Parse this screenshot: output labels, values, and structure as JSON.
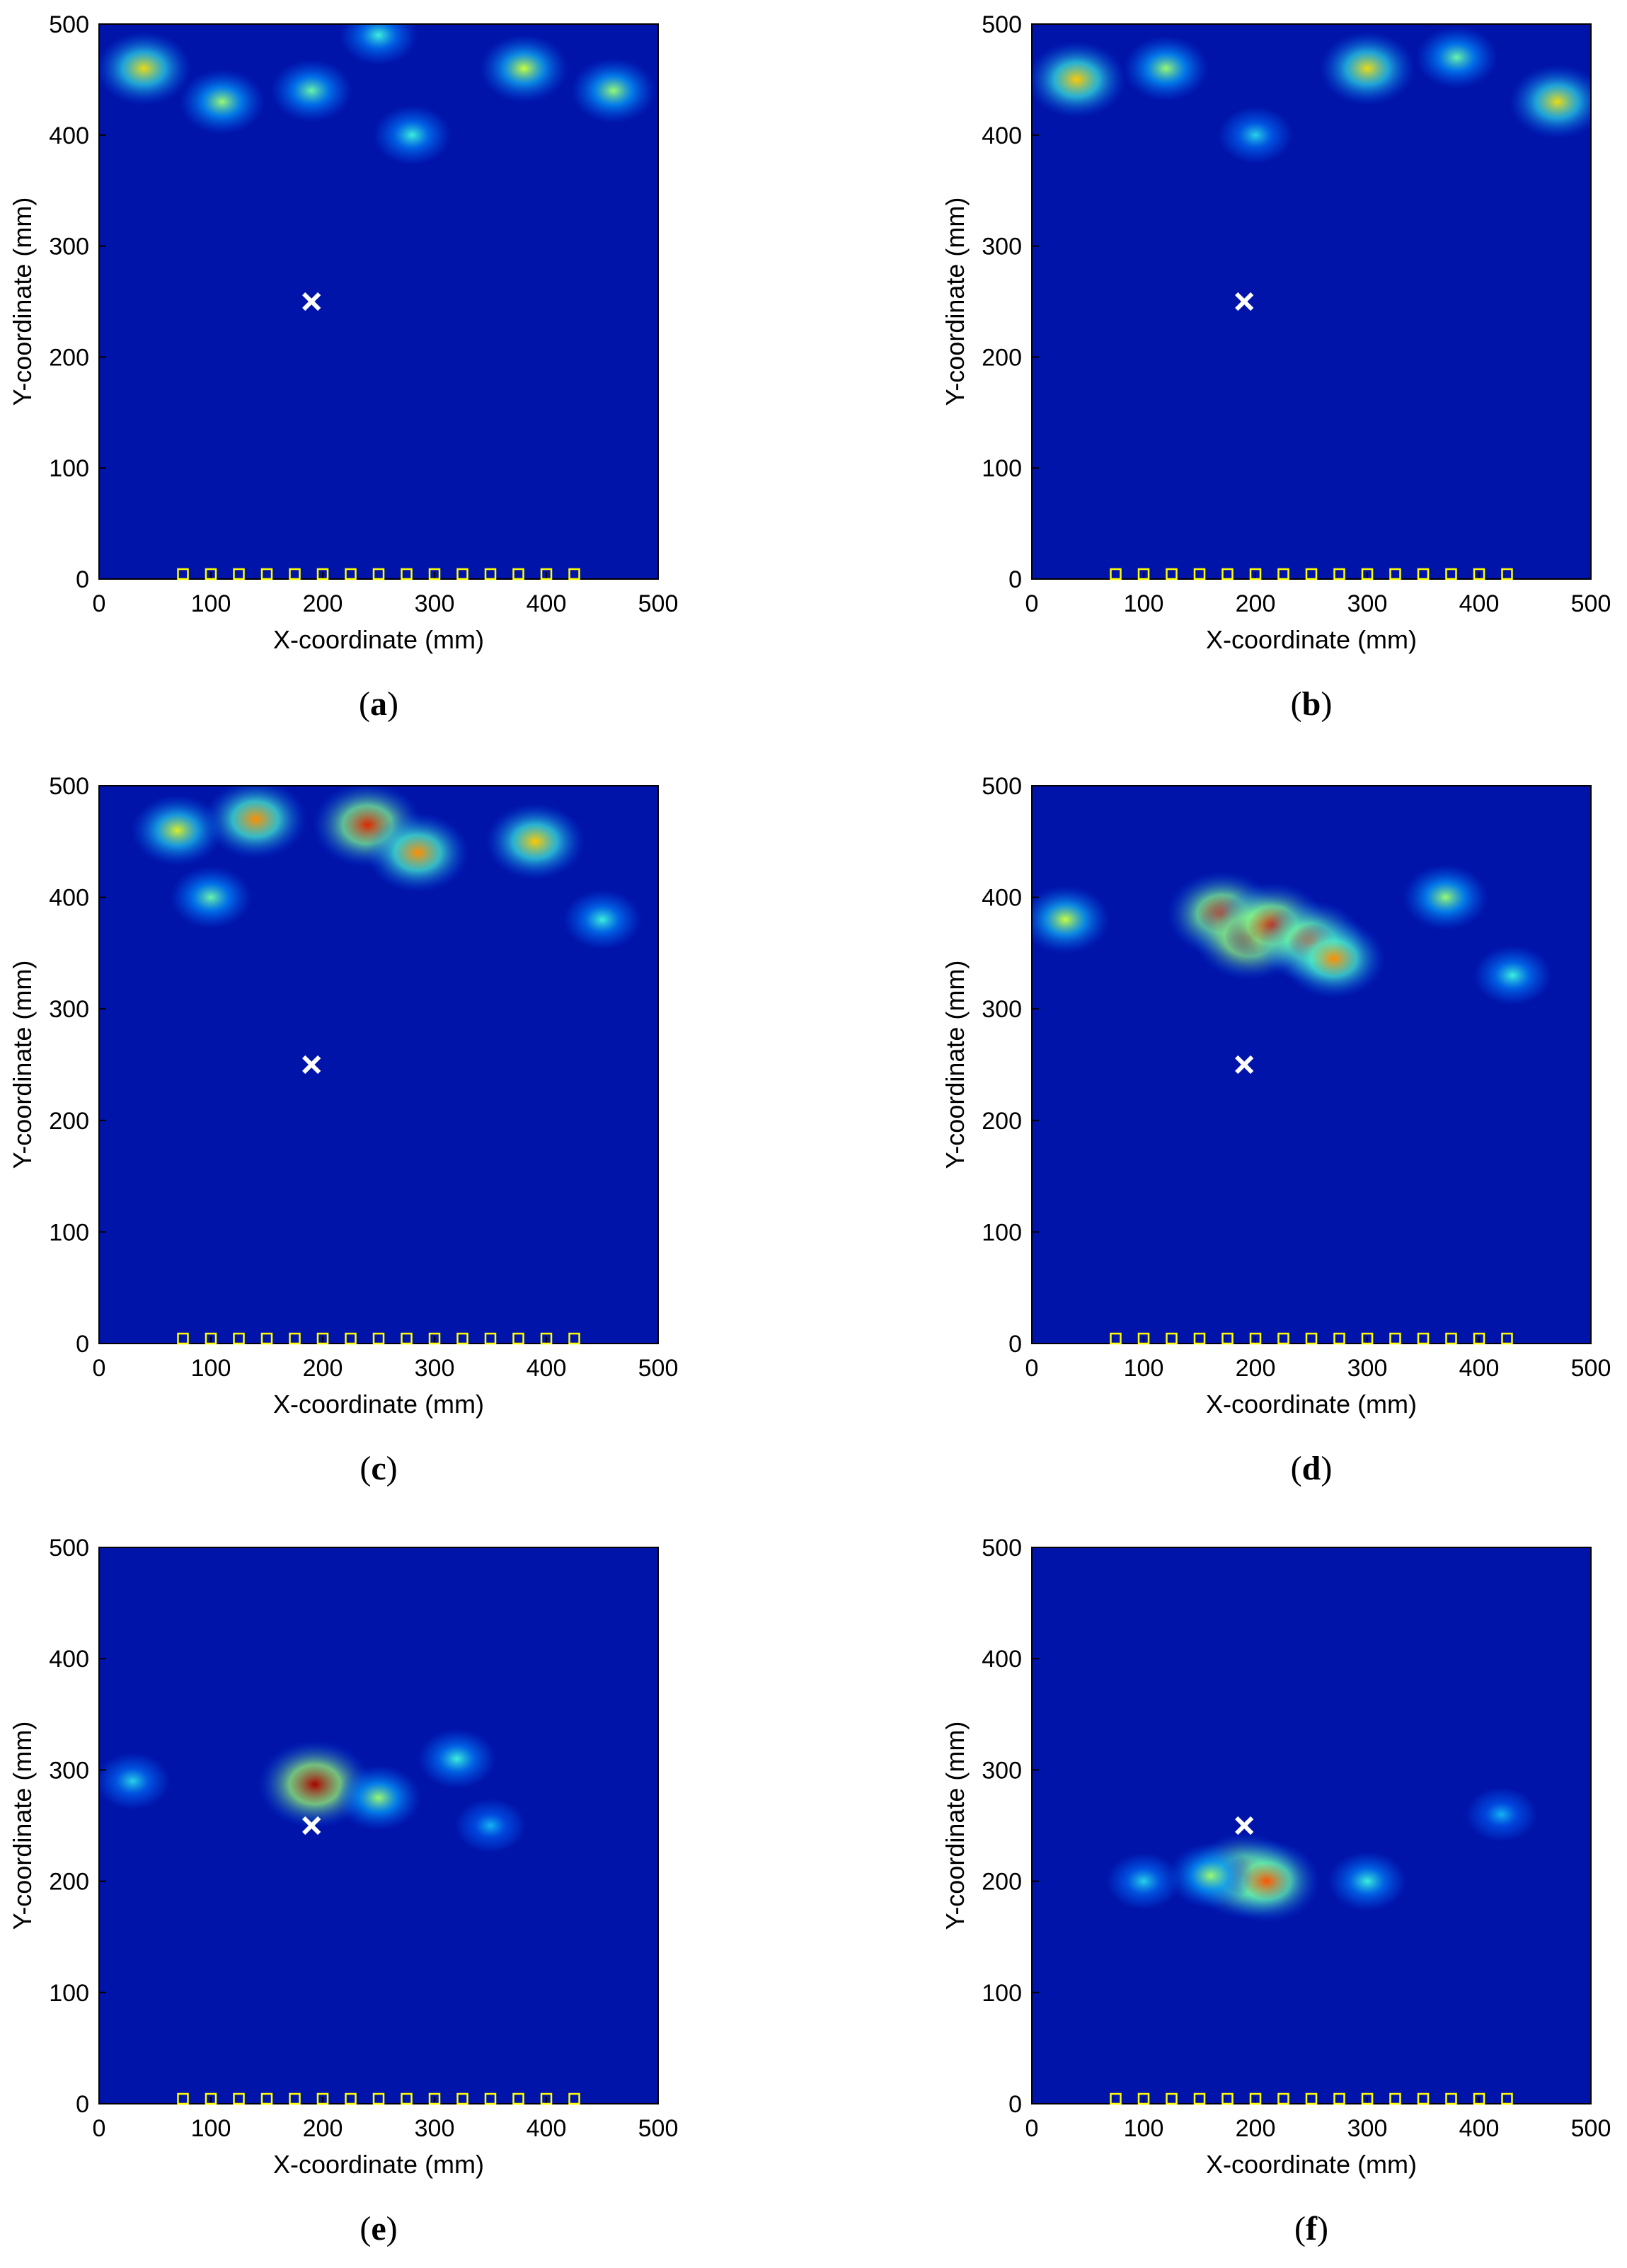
{
  "chart_data": [
    {
      "type": "heatmap",
      "caption": "a",
      "xlabel": "X-coordinate (mm)",
      "ylabel": "Y-coordinate (mm)",
      "xlim": [
        0,
        500
      ],
      "ylim": [
        0,
        500
      ],
      "xticks": [
        0,
        100,
        200,
        300,
        400,
        500
      ],
      "yticks": [
        0,
        100,
        200,
        300,
        400,
        500
      ],
      "colormap": "jet",
      "target_marker": {
        "x": 190,
        "y": 250,
        "symbol": "×"
      },
      "sensors_y": 0,
      "sensors_x": [
        75,
        100,
        125,
        150,
        175,
        200,
        225,
        250,
        275,
        300,
        325,
        350,
        375,
        400,
        425
      ],
      "hotspots": [
        {
          "x": 40,
          "y": 460,
          "intensity": 0.75
        },
        {
          "x": 110,
          "y": 430,
          "intensity": 0.6
        },
        {
          "x": 190,
          "y": 440,
          "intensity": 0.55
        },
        {
          "x": 280,
          "y": 400,
          "intensity": 0.5
        },
        {
          "x": 380,
          "y": 460,
          "intensity": 0.65
        },
        {
          "x": 460,
          "y": 440,
          "intensity": 0.6
        },
        {
          "x": 250,
          "y": 490,
          "intensity": 0.5
        }
      ]
    },
    {
      "type": "heatmap",
      "caption": "b",
      "xlabel": "X-coordinate (mm)",
      "ylabel": "Y-coordinate (mm)",
      "xlim": [
        0,
        500
      ],
      "ylim": [
        0,
        500
      ],
      "xticks": [
        0,
        100,
        200,
        300,
        400,
        500
      ],
      "yticks": [
        0,
        100,
        200,
        300,
        400,
        500
      ],
      "colormap": "jet",
      "target_marker": {
        "x": 190,
        "y": 250,
        "symbol": "×"
      },
      "sensors_y": 0,
      "sensors_x": [
        75,
        100,
        125,
        150,
        175,
        200,
        225,
        250,
        275,
        300,
        325,
        350,
        375,
        400,
        425
      ],
      "hotspots": [
        {
          "x": 40,
          "y": 450,
          "intensity": 0.8
        },
        {
          "x": 120,
          "y": 460,
          "intensity": 0.6
        },
        {
          "x": 300,
          "y": 460,
          "intensity": 0.75
        },
        {
          "x": 470,
          "y": 430,
          "intensity": 0.75
        },
        {
          "x": 200,
          "y": 400,
          "intensity": 0.45
        },
        {
          "x": 380,
          "y": 470,
          "intensity": 0.55
        }
      ]
    },
    {
      "type": "heatmap",
      "caption": "c",
      "xlabel": "X-coordinate (mm)",
      "ylabel": "Y-coordinate (mm)",
      "xlim": [
        0,
        500
      ],
      "ylim": [
        0,
        500
      ],
      "xticks": [
        0,
        100,
        200,
        300,
        400,
        500
      ],
      "yticks": [
        0,
        100,
        200,
        300,
        400,
        500
      ],
      "colormap": "jet",
      "target_marker": {
        "x": 190,
        "y": 250,
        "symbol": "×"
      },
      "sensors_y": 0,
      "sensors_x": [
        75,
        100,
        125,
        150,
        175,
        200,
        225,
        250,
        275,
        300,
        325,
        350,
        375,
        400,
        425
      ],
      "hotspots": [
        {
          "x": 140,
          "y": 470,
          "intensity": 0.85
        },
        {
          "x": 240,
          "y": 465,
          "intensity": 0.95
        },
        {
          "x": 285,
          "y": 440,
          "intensity": 0.85
        },
        {
          "x": 390,
          "y": 450,
          "intensity": 0.8
        },
        {
          "x": 70,
          "y": 460,
          "intensity": 0.7
        },
        {
          "x": 100,
          "y": 400,
          "intensity": 0.55
        },
        {
          "x": 450,
          "y": 380,
          "intensity": 0.5
        }
      ]
    },
    {
      "type": "heatmap",
      "caption": "d",
      "xlabel": "X-coordinate (mm)",
      "ylabel": "Y-coordinate (mm)",
      "xlim": [
        0,
        500
      ],
      "ylim": [
        0,
        500
      ],
      "xticks": [
        0,
        100,
        200,
        300,
        400,
        500
      ],
      "yticks": [
        0,
        100,
        200,
        300,
        400,
        500
      ],
      "colormap": "jet",
      "target_marker": {
        "x": 190,
        "y": 250,
        "symbol": "×"
      },
      "sensors_y": 0,
      "sensors_x": [
        75,
        100,
        125,
        150,
        175,
        200,
        225,
        250,
        275,
        300,
        325,
        350,
        375,
        400,
        425
      ],
      "hotspots": [
        {
          "x": 170,
          "y": 385,
          "intensity": 0.95
        },
        {
          "x": 195,
          "y": 365,
          "intensity": 1.0
        },
        {
          "x": 215,
          "y": 375,
          "intensity": 0.95
        },
        {
          "x": 250,
          "y": 360,
          "intensity": 0.9
        },
        {
          "x": 270,
          "y": 345,
          "intensity": 0.85
        },
        {
          "x": 30,
          "y": 380,
          "intensity": 0.65
        },
        {
          "x": 370,
          "y": 400,
          "intensity": 0.6
        },
        {
          "x": 430,
          "y": 330,
          "intensity": 0.5
        }
      ]
    },
    {
      "type": "heatmap",
      "caption": "e",
      "xlabel": "X-coordinate (mm)",
      "ylabel": "Y-coordinate (mm)",
      "xlim": [
        0,
        500
      ],
      "ylim": [
        0,
        500
      ],
      "xticks": [
        0,
        100,
        200,
        300,
        400,
        500
      ],
      "yticks": [
        0,
        100,
        200,
        300,
        400,
        500
      ],
      "colormap": "jet",
      "target_marker": {
        "x": 190,
        "y": 250,
        "symbol": "×"
      },
      "sensors_y": 0,
      "sensors_x": [
        75,
        100,
        125,
        150,
        175,
        200,
        225,
        250,
        275,
        300,
        325,
        350,
        375,
        400,
        425
      ],
      "hotspots": [
        {
          "x": 193,
          "y": 287,
          "intensity": 1.0
        },
        {
          "x": 250,
          "y": 275,
          "intensity": 0.6
        },
        {
          "x": 320,
          "y": 310,
          "intensity": 0.5
        },
        {
          "x": 30,
          "y": 290,
          "intensity": 0.45
        },
        {
          "x": 350,
          "y": 250,
          "intensity": 0.4
        }
      ]
    },
    {
      "type": "heatmap",
      "caption": "f",
      "xlabel": "X-coordinate (mm)",
      "ylabel": "Y-coordinate (mm)",
      "xlim": [
        0,
        500
      ],
      "ylim": [
        0,
        500
      ],
      "xticks": [
        0,
        100,
        200,
        300,
        400,
        500
      ],
      "yticks": [
        0,
        100,
        200,
        300,
        400,
        500
      ],
      "colormap": "jet",
      "target_marker": {
        "x": 190,
        "y": 250,
        "symbol": "×"
      },
      "sensors_y": 0,
      "sensors_x": [
        75,
        100,
        125,
        150,
        175,
        200,
        225,
        250,
        275,
        300,
        325,
        350,
        375,
        400,
        425
      ],
      "hotspots": [
        {
          "x": 190,
          "y": 205,
          "intensity": 0.95
        },
        {
          "x": 210,
          "y": 200,
          "intensity": 0.9
        },
        {
          "x": 160,
          "y": 205,
          "intensity": 0.6
        },
        {
          "x": 300,
          "y": 200,
          "intensity": 0.5
        },
        {
          "x": 100,
          "y": 200,
          "intensity": 0.45
        },
        {
          "x": 420,
          "y": 260,
          "intensity": 0.4
        }
      ]
    }
  ]
}
